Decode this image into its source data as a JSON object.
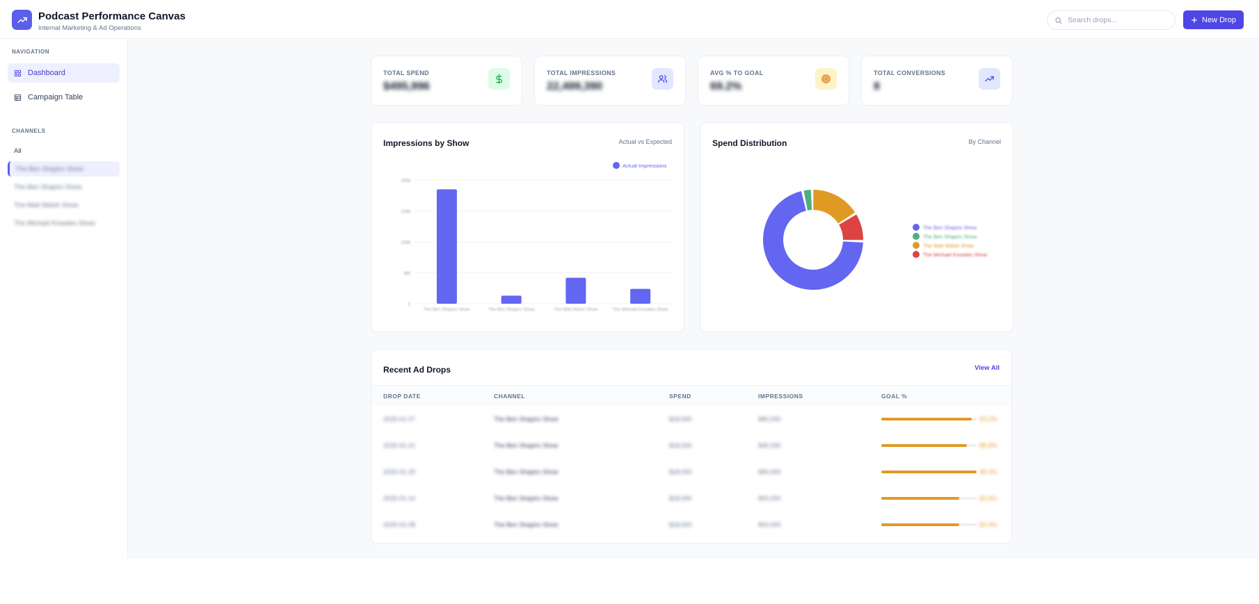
{
  "header": {
    "title": "Podcast Performance Canvas",
    "subtitle": "Internal Marketing & Ad Operations",
    "search_placeholder": "Search drops...",
    "new_drop_label": "New Drop",
    "accent": "#4f46e5"
  },
  "sidebar": {
    "nav_label": "NAVIGATION",
    "nav_items": [
      {
        "label": "Dashboard",
        "icon": "grid-icon",
        "active": true
      },
      {
        "label": "Campaign Table",
        "icon": "table-icon",
        "active": false
      }
    ],
    "channels_label": "CHANNELS",
    "channels": [
      {
        "label": "All"
      },
      {
        "label": "The Ben Shapiro Show",
        "active": true
      },
      {
        "label": "The Ben Shapiro Show"
      },
      {
        "label": "The Matt Walsh Show"
      },
      {
        "label": "The Michael Knowles Show"
      }
    ]
  },
  "stats": [
    {
      "label": "TOTAL SPEND",
      "value": "$495,996",
      "icon": "dollar-icon",
      "bg": "#dcfce7",
      "color": "#16a34a"
    },
    {
      "label": "TOTAL IMPRESSIONS",
      "value": "22,499,390",
      "icon": "users-icon",
      "bg": "#e0e7ff",
      "color": "#4f46e5"
    },
    {
      "label": "AVG % TO GOAL",
      "value": "69.2%",
      "icon": "target-icon",
      "bg": "#fef3c7",
      "color": "#d97706"
    },
    {
      "label": "TOTAL CONVERSIONS",
      "value": "8",
      "icon": "trending-up-icon",
      "bg": "#e0e7ff",
      "color": "#4f46e5"
    }
  ],
  "impressions_card": {
    "title": "Impressions by Show",
    "subtitle": "Actual vs Expected"
  },
  "spend_card": {
    "title": "Spend Distribution",
    "subtitle": "By Channel"
  },
  "chart_data": [
    {
      "type": "bar",
      "title": "Impressions by Show",
      "categories": [
        "The Ben Shapiro Show",
        "The Ben Shapiro Show",
        "The Matt Walsh Show",
        "The Michael Knowles Show"
      ],
      "series": [
        {
          "name": "Actual Impressions",
          "values": [
            18.5,
            1.3,
            4.2,
            2.4
          ],
          "color": "#6366f1"
        }
      ],
      "y_ticks": [
        "0",
        "5M",
        "10M",
        "15M",
        "20M"
      ],
      "ylim": [
        0,
        20
      ],
      "grid": true,
      "legend": "top-right"
    },
    {
      "type": "pie",
      "title": "Spend Distribution",
      "donut": true,
      "labels": [
        "The Ben Shapiro Show",
        "The Ben Shapiro Show",
        "The Matt Walsh Show",
        "The Michael Knowles Show"
      ],
      "values": [
        69,
        3,
        16,
        9
      ],
      "colors": [
        "#6366f1",
        "#4caf7d",
        "#e09a24",
        "#dc4444"
      ],
      "legend": "right"
    }
  ],
  "table": {
    "title": "Recent Ad Drops",
    "view_all": "View All",
    "columns": [
      "DROP DATE",
      "CHANNEL",
      "SPEND",
      "IMPRESSIONS",
      "GOAL %"
    ],
    "rows": [
      {
        "date": "2025-01-27",
        "channel": "The Ben Shapiro Show",
        "spend": "$18,000",
        "impressions": "880,000",
        "goal": "93.2%",
        "goal_fraction": 0.95
      },
      {
        "date": "2025-01-21",
        "channel": "The Ben Shapiro Show",
        "spend": "$18,000",
        "impressions": "845,000",
        "goal": "88.8%",
        "goal_fraction": 0.9
      },
      {
        "date": "2025-01-20",
        "channel": "The Ben Shapiro Show",
        "spend": "$18,000",
        "impressions": "890,000",
        "goal": "98.4%",
        "goal_fraction": 1.0
      },
      {
        "date": "2025-01-14",
        "channel": "The Ben Shapiro Show",
        "spend": "$18,000",
        "impressions": "800,000",
        "goal": "82.6%",
        "goal_fraction": 0.82
      },
      {
        "date": "2025-01-08",
        "channel": "The Ben Shapiro Show",
        "spend": "$18,000",
        "impressions": "800,000",
        "goal": "82.4%",
        "goal_fraction": 0.82
      }
    ]
  }
}
